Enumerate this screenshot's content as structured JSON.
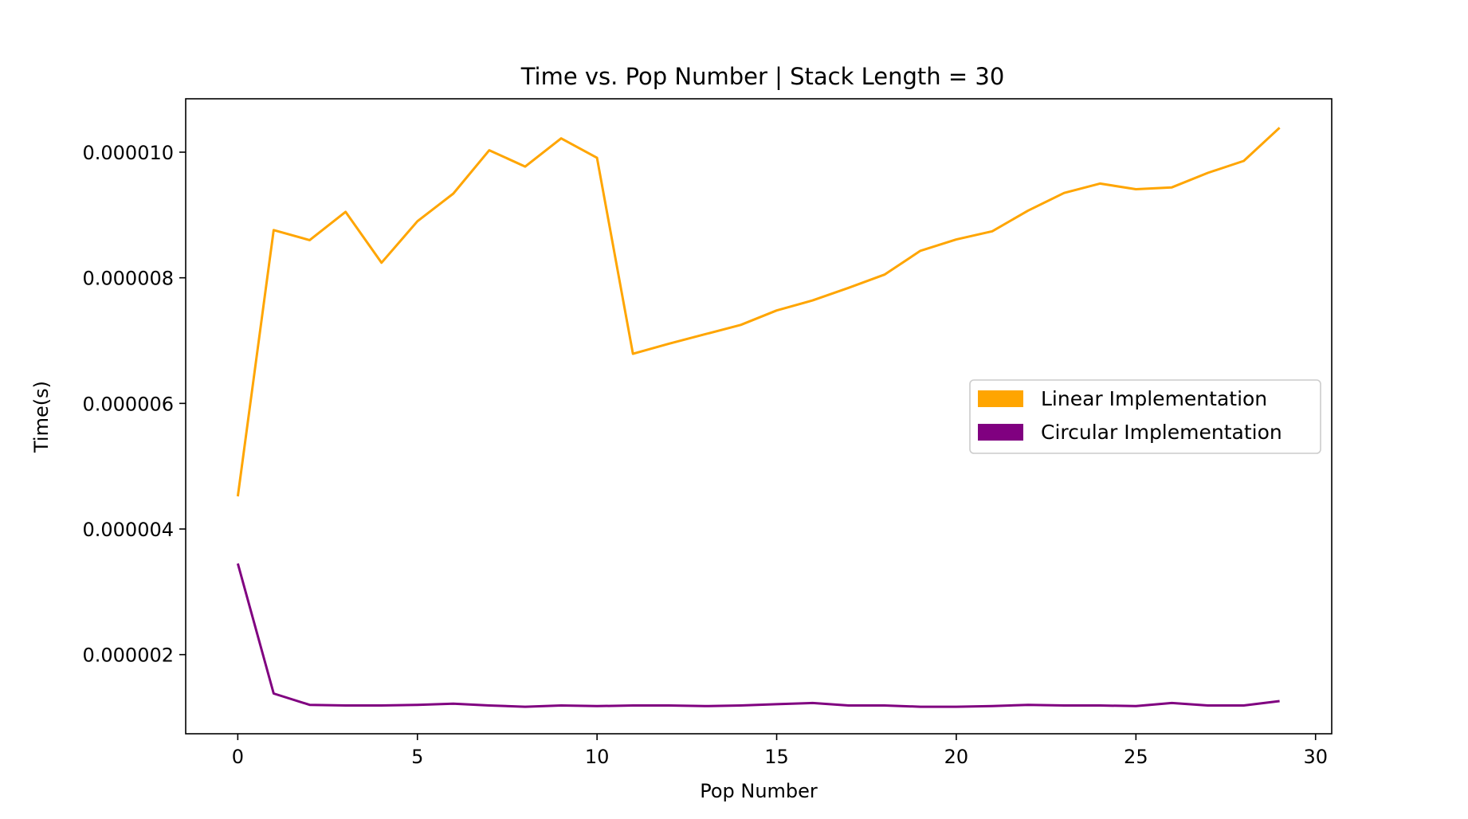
{
  "chart_data": {
    "type": "line",
    "title": "Time vs. Pop Number | Stack Length = 30",
    "xlabel": "Pop Number",
    "ylabel": "Time(s)",
    "xlim": [
      -1.45,
      30.45
    ],
    "ylim": [
      7.4e-07,
      1.085e-05
    ],
    "x_ticks": [
      0,
      5,
      10,
      15,
      20,
      25,
      30
    ],
    "x_tick_labels": [
      "0",
      "5",
      "10",
      "15",
      "20",
      "25",
      "30"
    ],
    "y_ticks": [
      2e-06,
      4e-06,
      6e-06,
      8e-06,
      1e-05
    ],
    "y_tick_labels": [
      "0.000002",
      "0.000004",
      "0.000006",
      "0.000008",
      "0.000010"
    ],
    "grid": false,
    "legend_position": "center-right",
    "x": [
      0,
      1,
      2,
      3,
      4,
      5,
      6,
      7,
      8,
      9,
      10,
      11,
      12,
      13,
      14,
      15,
      16,
      17,
      18,
      19,
      20,
      21,
      22,
      23,
      24,
      25,
      26,
      27,
      28,
      29
    ],
    "series": [
      {
        "name": "Linear Implementation",
        "color": "#FFA500",
        "values": [
          4.52e-06,
          8.76e-06,
          8.6e-06,
          9.05e-06,
          8.24e-06,
          8.9e-06,
          9.34e-06,
          1.003e-05,
          9.77e-06,
          1.022e-05,
          9.91e-06,
          6.79e-06,
          6.95e-06,
          7.1e-06,
          7.25e-06,
          7.48e-06,
          7.64e-06,
          7.84e-06,
          8.05e-06,
          8.43e-06,
          8.61e-06,
          8.74e-06,
          9.07e-06,
          9.35e-06,
          9.5e-06,
          9.41e-06,
          9.44e-06,
          9.67e-06,
          9.86e-06,
          1.039e-05
        ]
      },
      {
        "name": "Circular Implementation",
        "color": "#800080",
        "values": [
          3.45e-06,
          1.38e-06,
          1.2e-06,
          1.19e-06,
          1.19e-06,
          1.2e-06,
          1.22e-06,
          1.19e-06,
          1.17e-06,
          1.19e-06,
          1.18e-06,
          1.19e-06,
          1.19e-06,
          1.18e-06,
          1.19e-06,
          1.21e-06,
          1.23e-06,
          1.19e-06,
          1.19e-06,
          1.17e-06,
          1.17e-06,
          1.18e-06,
          1.2e-06,
          1.19e-06,
          1.19e-06,
          1.18e-06,
          1.23e-06,
          1.19e-06,
          1.19e-06,
          1.26e-06
        ]
      }
    ]
  }
}
